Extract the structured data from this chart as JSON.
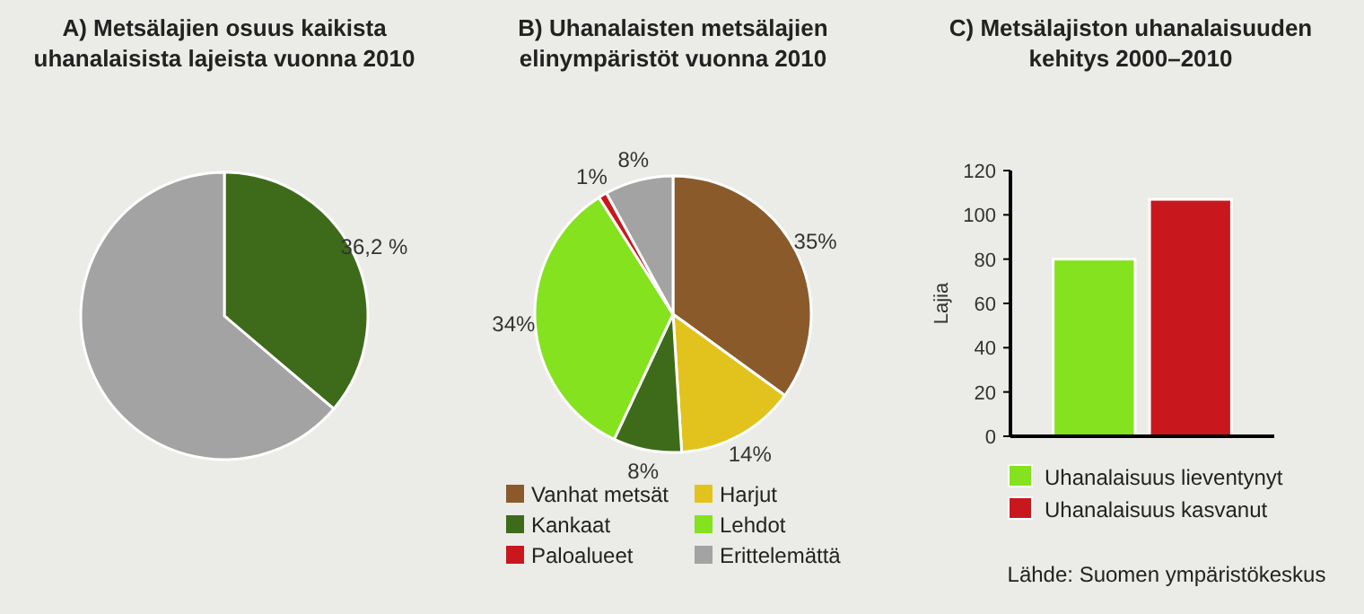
{
  "chart_data": [
    {
      "type": "pie",
      "title": "A) Metsälajien osuus kaikista\nuhanalaisista lajeista vuonna 2010",
      "categories": [
        null,
        null
      ],
      "values": [
        36.2,
        63.8
      ],
      "colors": [
        "#3e6b1a",
        "#a3a3a3"
      ],
      "value_labels": [
        "36,2 %",
        null
      ],
      "legend": false
    },
    {
      "type": "pie",
      "title": "B) Uhanalaisten metsälajien\nelinympäristöt vuonna 2010",
      "categories": [
        "Vanhat metsät",
        "Harjut",
        "Kankaat",
        "Lehdot",
        "Paloalueet",
        "Erittelemättä"
      ],
      "values": [
        35,
        14,
        8,
        34,
        1,
        8
      ],
      "colors": [
        "#8b5a2b",
        "#e2c31e",
        "#3e6b1a",
        "#84e21e",
        "#c8181e",
        "#a3a3a3"
      ],
      "value_labels": [
        "35%",
        "14%",
        "8%",
        "34%",
        "1%",
        "8%"
      ],
      "legend": "bottom"
    },
    {
      "type": "bar",
      "title": "C) Metsälajiston uhanalaisuuden\nkehitys 2000–2010",
      "ylabel": "Lajia",
      "categories": [
        null
      ],
      "series": [
        {
          "name": "Uhanalaisuus lieventynyt",
          "color": "#84e21e",
          "values": [
            80
          ]
        },
        {
          "name": "Uhanalaisuus kasvanut",
          "color": "#c8181e",
          "values": [
            107
          ]
        }
      ],
      "ylim": [
        0,
        120
      ],
      "yticks": [
        0,
        20,
        40,
        60,
        80,
        100,
        120
      ],
      "legend": "bottom",
      "annotations": [
        "Lähde: Suomen ympäristökeskus"
      ]
    }
  ]
}
